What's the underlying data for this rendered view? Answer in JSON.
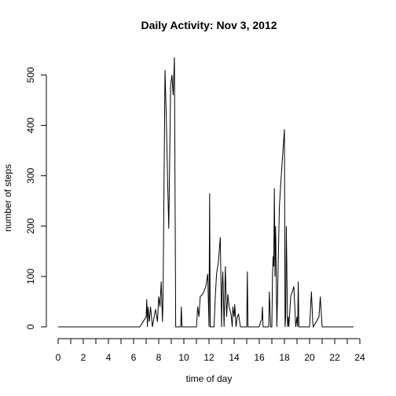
{
  "chart_data": {
    "type": "line",
    "title": "Daily Activity: Nov 3, 2012",
    "xlabel": "time of day",
    "ylabel": "number of steps",
    "xlim": [
      0,
      24
    ],
    "ylim": [
      0,
      535
    ],
    "grid": false,
    "legend": "none",
    "x_ticks": [
      0,
      1,
      2,
      3,
      4,
      5,
      6,
      7,
      8,
      9,
      10,
      11,
      12,
      13,
      14,
      15,
      16,
      17,
      18,
      19,
      20,
      21,
      22,
      23,
      24
    ],
    "x_tick_labels": [
      "0",
      "",
      "2",
      "",
      "4",
      "",
      "6",
      "",
      "8",
      "",
      "10",
      "",
      "12",
      "",
      "14",
      "",
      "16",
      "",
      "18",
      "",
      "20",
      "",
      "22",
      "",
      "24"
    ],
    "y_ticks": [
      0,
      100,
      200,
      300,
      400,
      500
    ],
    "y_tick_labels": [
      "0",
      "100",
      "200",
      "300",
      "400",
      "500"
    ],
    "series": [
      {
        "color": "#000000",
        "x": [
          0,
          6.5,
          7.0,
          7.05,
          7.1,
          7.15,
          7.25,
          7.35,
          7.5,
          7.6,
          7.75,
          7.9,
          8.0,
          8.1,
          8.2,
          8.3,
          8.35,
          8.5,
          8.6,
          8.7,
          8.8,
          8.95,
          9.05,
          9.15,
          9.25,
          9.35,
          9.5,
          9.75,
          9.8,
          9.85,
          10.0,
          11.0,
          11.1,
          11.2,
          11.3,
          11.5,
          11.75,
          11.9,
          12.0,
          12.05,
          12.1,
          12.2,
          12.4,
          12.5,
          12.6,
          12.75,
          12.9,
          13.0,
          13.05,
          13.1,
          13.2,
          13.3,
          13.4,
          13.5,
          13.6,
          13.75,
          13.85,
          13.9,
          14.0,
          14.05,
          14.15,
          14.25,
          14.35,
          14.5,
          14.75,
          15.0,
          15.05,
          15.1,
          16.0,
          16.1,
          16.2,
          16.25,
          16.3,
          16.75,
          16.8,
          16.9,
          17.0,
          17.05,
          17.1,
          17.15,
          17.2,
          17.25,
          17.3,
          17.4,
          17.6,
          17.8,
          18.0,
          18.05,
          18.1,
          18.15,
          18.25,
          18.3,
          18.35,
          18.4,
          18.5,
          18.75,
          18.9,
          19.0,
          19.05,
          19.1,
          19.15,
          19.25,
          19.3,
          20.0,
          20.15,
          20.25,
          20.3,
          20.75,
          20.85,
          21.0,
          23.5
        ],
        "y": [
          0,
          0,
          20,
          55,
          0,
          40,
          10,
          40,
          0,
          15,
          35,
          10,
          60,
          40,
          90,
          10,
          70,
          510,
          420,
          300,
          195,
          480,
          500,
          460,
          535,
          0,
          0,
          0,
          40,
          0,
          0,
          0,
          40,
          20,
          60,
          65,
          80,
          105,
          0,
          265,
          0,
          0,
          0,
          60,
          105,
          130,
          178,
          0,
          80,
          110,
          0,
          120,
          20,
          65,
          40,
          25,
          0,
          40,
          20,
          45,
          0,
          20,
          25,
          0,
          0,
          0,
          110,
          0,
          0,
          10,
          15,
          40,
          0,
          0,
          70,
          0,
          0,
          100,
          140,
          120,
          275,
          100,
          200,
          0,
          240,
          320,
          392,
          0,
          20,
          200,
          0,
          20,
          0,
          20,
          60,
          80,
          0,
          20,
          0,
          90,
          0,
          0,
          0,
          0,
          70,
          10,
          0,
          20,
          60,
          0,
          0
        ]
      }
    ]
  }
}
